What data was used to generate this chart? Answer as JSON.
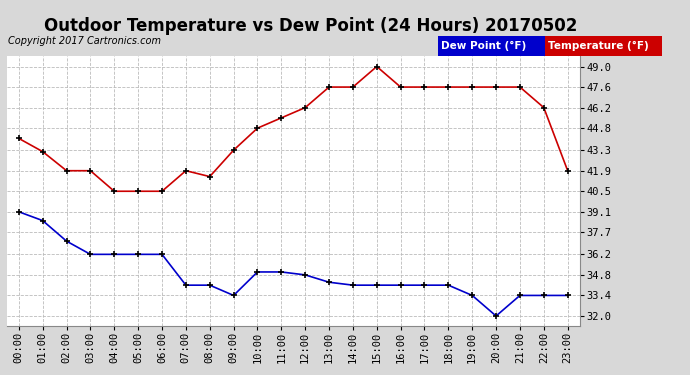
{
  "title": "Outdoor Temperature vs Dew Point (24 Hours) 20170502",
  "copyright": "Copyright 2017 Cartronics.com",
  "hours": [
    "00:00",
    "01:00",
    "02:00",
    "03:00",
    "04:00",
    "05:00",
    "06:00",
    "07:00",
    "08:00",
    "09:00",
    "10:00",
    "11:00",
    "12:00",
    "13:00",
    "14:00",
    "15:00",
    "16:00",
    "17:00",
    "18:00",
    "19:00",
    "20:00",
    "21:00",
    "22:00",
    "23:00"
  ],
  "temperature": [
    44.1,
    43.2,
    41.9,
    41.9,
    40.5,
    40.5,
    40.5,
    41.9,
    41.5,
    43.3,
    44.8,
    45.5,
    46.2,
    47.6,
    47.6,
    49.0,
    47.6,
    47.6,
    47.6,
    47.6,
    47.6,
    47.6,
    46.2,
    41.9
  ],
  "dew_point": [
    39.1,
    38.5,
    37.1,
    36.2,
    36.2,
    36.2,
    36.2,
    34.1,
    34.1,
    33.4,
    35.0,
    35.0,
    34.8,
    34.3,
    34.1,
    34.1,
    34.1,
    34.1,
    34.1,
    33.4,
    32.0,
    33.4,
    33.4,
    33.4
  ],
  "ylim": [
    31.3,
    49.7
  ],
  "yticks": [
    32.0,
    33.4,
    34.8,
    36.2,
    37.7,
    39.1,
    40.5,
    41.9,
    43.3,
    44.8,
    46.2,
    47.6,
    49.0
  ],
  "temp_color": "#cc0000",
  "dew_color": "#0000cc",
  "bg_color": "#d8d8d8",
  "plot_bg_color": "#ffffff",
  "grid_color": "#bbbbbb",
  "legend_dew_bg": "#0000cc",
  "legend_temp_bg": "#cc0000",
  "title_fontsize": 12,
  "tick_fontsize": 7.5,
  "copyright_fontsize": 7
}
